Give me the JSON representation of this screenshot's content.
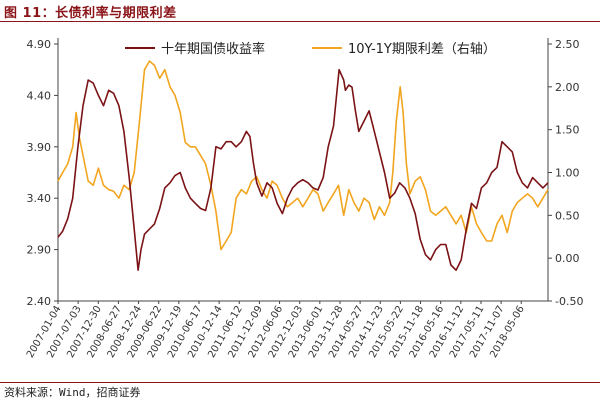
{
  "figure": {
    "title": "图 11：长债利率与期限利差",
    "source": "资料来源：Wind，招商证券"
  },
  "colors": {
    "title": "#8a1418",
    "series_10y": "#7b1316",
    "series_spread": "#f2a51f",
    "axis": "#444444"
  },
  "chart_data": {
    "type": "line",
    "title": "",
    "grid": false,
    "legend_position": "top",
    "x_axis": {
      "type": "date",
      "range": [
        "2007-01-04",
        "2018-12-31"
      ],
      "tick_labels": [
        "2007-01-04",
        "2007-07-03",
        "2007-12-30",
        "2008-06-27",
        "2008-12-24",
        "2009-06-22",
        "2009-12-19",
        "2010-06-17",
        "2010-12-14",
        "2011-06-12",
        "2011-12-09",
        "2012-06-06",
        "2012-12-03",
        "2013-06-01",
        "2013-11-28",
        "2014-05-27",
        "2014-11-23",
        "2015-05-22",
        "2015-11-18",
        "2016-05-16",
        "2016-11-12",
        "2017-05-11",
        "2017-11-07",
        "2018-05-06"
      ],
      "label_rotation": -60
    },
    "y_left": {
      "min": 2.4,
      "max": 4.9,
      "ticks": [
        "2.40",
        "2.90",
        "3.40",
        "3.90",
        "4.40",
        "4.90"
      ]
    },
    "y_right": {
      "min": -0.5,
      "max": 2.5,
      "ticks": [
        "-0.50",
        "0.00",
        "0.50",
        "1.00",
        "1.50",
        "2.00",
        "2.50"
      ]
    },
    "series": [
      {
        "name": "十年期国债收益率",
        "axis": "left",
        "color": "#7b1316",
        "points": [
          [
            "2007-01-04",
            3.02
          ],
          [
            "2007-02-15",
            3.08
          ],
          [
            "2007-04-01",
            3.2
          ],
          [
            "2007-05-15",
            3.4
          ],
          [
            "2007-07-01",
            3.9
          ],
          [
            "2007-08-15",
            4.3
          ],
          [
            "2007-10-01",
            4.55
          ],
          [
            "2007-11-15",
            4.52
          ],
          [
            "2007-12-31",
            4.4
          ],
          [
            "2008-02-15",
            4.3
          ],
          [
            "2008-04-01",
            4.45
          ],
          [
            "2008-05-15",
            4.42
          ],
          [
            "2008-07-01",
            4.3
          ],
          [
            "2008-08-15",
            4.05
          ],
          [
            "2008-10-01",
            3.6
          ],
          [
            "2008-11-15",
            3.1
          ],
          [
            "2008-12-20",
            2.7
          ],
          [
            "2009-01-15",
            2.9
          ],
          [
            "2009-02-15",
            3.05
          ],
          [
            "2009-04-01",
            3.1
          ],
          [
            "2009-05-15",
            3.15
          ],
          [
            "2009-07-01",
            3.3
          ],
          [
            "2009-08-15",
            3.5
          ],
          [
            "2009-10-01",
            3.55
          ],
          [
            "2009-11-15",
            3.62
          ],
          [
            "2009-12-31",
            3.65
          ],
          [
            "2010-02-15",
            3.5
          ],
          [
            "2010-04-01",
            3.4
          ],
          [
            "2010-05-15",
            3.35
          ],
          [
            "2010-07-01",
            3.3
          ],
          [
            "2010-08-15",
            3.28
          ],
          [
            "2010-10-01",
            3.5
          ],
          [
            "2010-11-15",
            3.9
          ],
          [
            "2010-12-31",
            3.88
          ],
          [
            "2011-02-15",
            3.95
          ],
          [
            "2011-04-01",
            3.95
          ],
          [
            "2011-05-15",
            3.9
          ],
          [
            "2011-07-01",
            3.95
          ],
          [
            "2011-08-15",
            4.05
          ],
          [
            "2011-09-15",
            4.0
          ],
          [
            "2011-10-15",
            3.75
          ],
          [
            "2011-11-15",
            3.55
          ],
          [
            "2011-12-31",
            3.42
          ],
          [
            "2012-02-15",
            3.55
          ],
          [
            "2012-04-01",
            3.5
          ],
          [
            "2012-05-15",
            3.35
          ],
          [
            "2012-07-01",
            3.25
          ],
          [
            "2012-08-15",
            3.4
          ],
          [
            "2012-10-01",
            3.5
          ],
          [
            "2012-11-15",
            3.55
          ],
          [
            "2012-12-31",
            3.58
          ],
          [
            "2013-02-15",
            3.55
          ],
          [
            "2013-04-01",
            3.5
          ],
          [
            "2013-05-15",
            3.48
          ],
          [
            "2013-07-01",
            3.6
          ],
          [
            "2013-08-15",
            3.9
          ],
          [
            "2013-10-01",
            4.1
          ],
          [
            "2013-11-20",
            4.65
          ],
          [
            "2013-12-31",
            4.55
          ],
          [
            "2014-01-15",
            4.45
          ],
          [
            "2014-02-15",
            4.5
          ],
          [
            "2014-03-15",
            4.48
          ],
          [
            "2014-04-15",
            4.25
          ],
          [
            "2014-05-15",
            4.05
          ],
          [
            "2014-07-01",
            4.15
          ],
          [
            "2014-08-15",
            4.25
          ],
          [
            "2014-10-01",
            4.05
          ],
          [
            "2014-11-15",
            3.85
          ],
          [
            "2014-12-31",
            3.65
          ],
          [
            "2015-02-15",
            3.4
          ],
          [
            "2015-04-01",
            3.45
          ],
          [
            "2015-05-15",
            3.55
          ],
          [
            "2015-07-01",
            3.5
          ],
          [
            "2015-08-15",
            3.4
          ],
          [
            "2015-10-01",
            3.25
          ],
          [
            "2015-11-15",
            3.0
          ],
          [
            "2016-01-01",
            2.85
          ],
          [
            "2016-02-15",
            2.8
          ],
          [
            "2016-04-01",
            2.9
          ],
          [
            "2016-05-15",
            2.95
          ],
          [
            "2016-07-01",
            2.95
          ],
          [
            "2016-08-15",
            2.75
          ],
          [
            "2016-10-01",
            2.7
          ],
          [
            "2016-11-15",
            2.8
          ],
          [
            "2016-12-31",
            3.1
          ],
          [
            "2017-02-15",
            3.35
          ],
          [
            "2017-04-01",
            3.3
          ],
          [
            "2017-05-15",
            3.5
          ],
          [
            "2017-07-01",
            3.55
          ],
          [
            "2017-08-15",
            3.65
          ],
          [
            "2017-10-01",
            3.7
          ],
          [
            "2017-11-15",
            3.95
          ],
          [
            "2017-12-31",
            3.9
          ],
          [
            "2018-02-15",
            3.85
          ],
          [
            "2018-04-01",
            3.65
          ],
          [
            "2018-05-15",
            3.55
          ],
          [
            "2018-07-01",
            3.5
          ],
          [
            "2018-08-15",
            3.6
          ],
          [
            "2018-10-01",
            3.55
          ],
          [
            "2018-11-15",
            3.5
          ],
          [
            "2018-12-31",
            3.55
          ]
        ]
      },
      {
        "name": "10Y-1Y期限利差（右轴）",
        "axis": "right",
        "color": "#f2a51f",
        "points": [
          [
            "2007-01-04",
            0.9
          ],
          [
            "2007-02-15",
            1.0
          ],
          [
            "2007-04-01",
            1.1
          ],
          [
            "2007-05-15",
            1.3
          ],
          [
            "2007-06-15",
            1.7
          ],
          [
            "2007-07-15",
            1.4
          ],
          [
            "2007-08-15",
            1.2
          ],
          [
            "2007-10-01",
            0.9
          ],
          [
            "2007-11-15",
            0.85
          ],
          [
            "2007-12-31",
            1.05
          ],
          [
            "2008-02-15",
            0.85
          ],
          [
            "2008-04-01",
            0.8
          ],
          [
            "2008-05-15",
            0.78
          ],
          [
            "2008-07-01",
            0.7
          ],
          [
            "2008-08-15",
            0.85
          ],
          [
            "2008-10-01",
            0.8
          ],
          [
            "2008-11-15",
            1.0
          ],
          [
            "2009-01-01",
            1.6
          ],
          [
            "2009-02-15",
            2.2
          ],
          [
            "2009-04-01",
            2.3
          ],
          [
            "2009-05-15",
            2.25
          ],
          [
            "2009-07-01",
            2.1
          ],
          [
            "2009-08-15",
            2.2
          ],
          [
            "2009-10-01",
            2.0
          ],
          [
            "2009-11-15",
            1.9
          ],
          [
            "2009-12-31",
            1.7
          ],
          [
            "2010-02-15",
            1.35
          ],
          [
            "2010-04-01",
            1.3
          ],
          [
            "2010-05-15",
            1.3
          ],
          [
            "2010-07-01",
            1.2
          ],
          [
            "2010-08-15",
            1.1
          ],
          [
            "2010-10-01",
            0.85
          ],
          [
            "2010-11-15",
            0.55
          ],
          [
            "2010-12-31",
            0.1
          ],
          [
            "2011-02-15",
            0.2
          ],
          [
            "2011-04-01",
            0.3
          ],
          [
            "2011-05-15",
            0.7
          ],
          [
            "2011-07-01",
            0.8
          ],
          [
            "2011-08-15",
            0.75
          ],
          [
            "2011-10-01",
            0.9
          ],
          [
            "2011-11-15",
            0.95
          ],
          [
            "2011-12-31",
            0.8
          ],
          [
            "2012-02-15",
            0.7
          ],
          [
            "2012-04-01",
            0.9
          ],
          [
            "2012-05-15",
            0.85
          ],
          [
            "2012-07-01",
            0.7
          ],
          [
            "2012-08-15",
            0.6
          ],
          [
            "2012-10-01",
            0.65
          ],
          [
            "2012-11-15",
            0.7
          ],
          [
            "2012-12-31",
            0.6
          ],
          [
            "2013-02-15",
            0.7
          ],
          [
            "2013-04-01",
            0.8
          ],
          [
            "2013-05-15",
            0.75
          ],
          [
            "2013-07-01",
            0.55
          ],
          [
            "2013-08-15",
            0.65
          ],
          [
            "2013-10-01",
            0.75
          ],
          [
            "2013-11-15",
            0.85
          ],
          [
            "2013-12-31",
            0.5
          ],
          [
            "2014-02-15",
            0.8
          ],
          [
            "2014-04-01",
            0.65
          ],
          [
            "2014-05-15",
            0.55
          ],
          [
            "2014-07-01",
            0.7
          ],
          [
            "2014-08-15",
            0.65
          ],
          [
            "2014-10-01",
            0.45
          ],
          [
            "2014-11-15",
            0.6
          ],
          [
            "2014-12-31",
            0.5
          ],
          [
            "2015-02-15",
            0.65
          ],
          [
            "2015-03-15",
            1.0
          ],
          [
            "2015-04-15",
            1.6
          ],
          [
            "2015-05-20",
            2.0
          ],
          [
            "2015-06-15",
            1.7
          ],
          [
            "2015-07-15",
            1.1
          ],
          [
            "2015-08-15",
            0.75
          ],
          [
            "2015-10-01",
            0.9
          ],
          [
            "2015-11-15",
            0.95
          ],
          [
            "2015-12-31",
            0.8
          ],
          [
            "2016-02-15",
            0.55
          ],
          [
            "2016-04-01",
            0.5
          ],
          [
            "2016-05-15",
            0.55
          ],
          [
            "2016-07-01",
            0.6
          ],
          [
            "2016-08-15",
            0.5
          ],
          [
            "2016-10-01",
            0.4
          ],
          [
            "2016-11-15",
            0.5
          ],
          [
            "2016-12-31",
            0.3
          ],
          [
            "2017-02-15",
            0.6
          ],
          [
            "2017-04-01",
            0.4
          ],
          [
            "2017-05-15",
            0.3
          ],
          [
            "2017-07-01",
            0.2
          ],
          [
            "2017-08-15",
            0.2
          ],
          [
            "2017-10-01",
            0.4
          ],
          [
            "2017-11-15",
            0.5
          ],
          [
            "2017-12-31",
            0.3
          ],
          [
            "2018-02-15",
            0.55
          ],
          [
            "2018-04-01",
            0.65
          ],
          [
            "2018-05-15",
            0.7
          ],
          [
            "2018-07-01",
            0.75
          ],
          [
            "2018-08-15",
            0.7
          ],
          [
            "2018-10-01",
            0.6
          ],
          [
            "2018-11-15",
            0.7
          ],
          [
            "2018-12-31",
            0.8
          ]
        ]
      }
    ]
  }
}
